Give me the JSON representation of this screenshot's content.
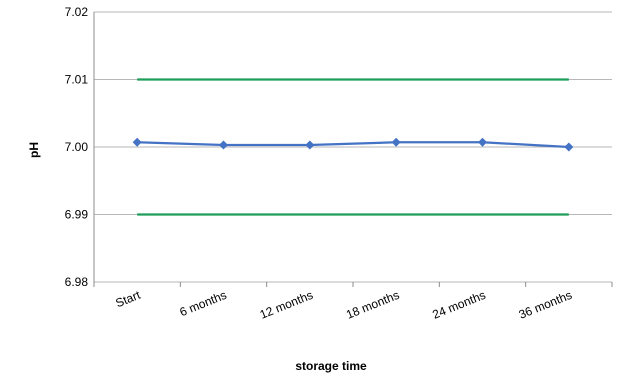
{
  "chart_data": {
    "type": "line",
    "title": "",
    "xlabel": "storage time",
    "ylabel": "pH",
    "categories": [
      "Start",
      "6 months",
      "12 months",
      "18 months",
      "24 months",
      "36 months"
    ],
    "ylim": [
      6.98,
      7.02
    ],
    "yticks": [
      "6.98",
      "6.99",
      "7.00",
      "7.01",
      "7.02"
    ],
    "grid": "horizontal",
    "legend": "none",
    "series": [
      {
        "values": [
          7.0007,
          7.0003,
          7.0003,
          7.0007,
          7.0007,
          7.0
        ],
        "color": "#4472C4",
        "marker": "diamond"
      },
      {
        "values": [
          7.01,
          7.01,
          7.01,
          7.01,
          7.01,
          7.01
        ],
        "color": "#1E9E5A",
        "marker": "none"
      },
      {
        "values": [
          6.99,
          6.99,
          6.99,
          6.99,
          6.99,
          6.99
        ],
        "color": "#1E9E5A",
        "marker": "none"
      }
    ]
  }
}
